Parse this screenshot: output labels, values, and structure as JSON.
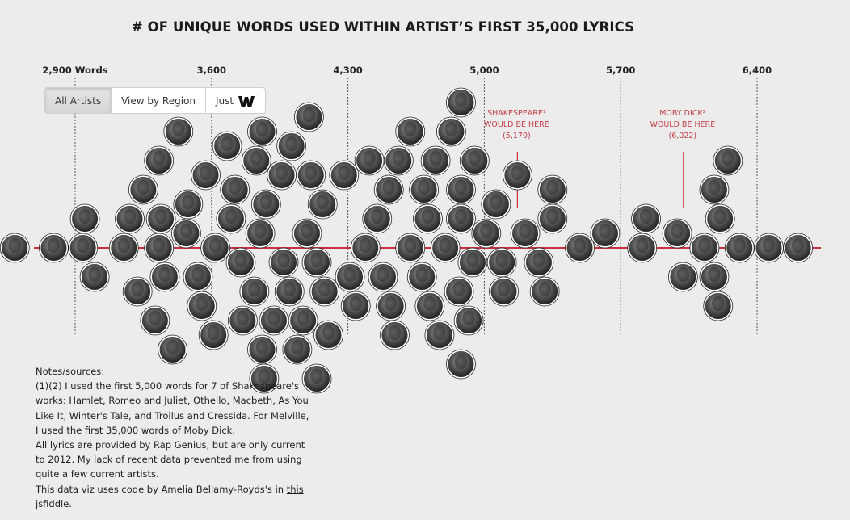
{
  "title": "# OF UNIQUE WORDS USED WITHIN ARTIST’S FIRST 35,000 LYRICS",
  "controls": {
    "all_artists": "All Artists",
    "view_by_region": "View by Region",
    "just": "Just",
    "wu_tang_icon": "wu-tang-logo-icon"
  },
  "chart_data": {
    "type": "scatter",
    "title": "# OF UNIQUE WORDS USED WITHIN ARTIST’S FIRST 35,000 LYRICS",
    "x_axis": {
      "range": [
        2600,
        6700
      ],
      "ticks": [
        2900,
        3600,
        4300,
        5000,
        5700,
        6400
      ],
      "tick_labels": [
        "2,900 Words",
        "3,600",
        "4,300",
        "5,000",
        "5,700",
        "6,400"
      ]
    },
    "grid": true,
    "annotations": [
      {
        "lines": [
          "SHAKESPEARE¹",
          "WOULD BE HERE",
          "(5,170)"
        ],
        "value": 5170
      },
      {
        "lines": [
          "MOBY DICK²",
          "WOULD BE HERE",
          "(6,022)"
        ],
        "value": 6022
      }
    ],
    "point_values": [
      2590,
      2790,
      3150,
      3330,
      3340,
      3360,
      3470,
      3480,
      3620,
      3700,
      3750,
      3820,
      3850,
      3880,
      3970,
      4090,
      4140,
      4170,
      4390,
      4450,
      4480,
      4510,
      4620,
      4710,
      4800,
      4880,
      4940,
      5010,
      5090,
      5210,
      5280,
      5350,
      5490,
      5620,
      6130,
      6210,
      6310,
      6460,
      6610,
      2940,
      2950,
      3000,
      3180,
      3220,
      3250,
      3310,
      3330,
      3400,
      3430,
      3530,
      3550,
      3570,
      3610,
      3680,
      3720,
      3760,
      3830,
      3860,
      3860,
      3870,
      3920,
      3960,
      4000,
      4010,
      4040,
      4070,
      4100,
      4110,
      4140,
      4180,
      4200,
      4280,
      4310,
      4340,
      4410,
      4520,
      4540,
      4560,
      4620,
      4680,
      4690,
      4720,
      4750,
      4770,
      4830,
      4870,
      4880,
      4880,
      4880,
      4920,
      4950,
      5060,
      5100,
      5170,
      5310,
      5350,
      5810,
      5830,
      5990,
      6020,
      6180,
      6180,
      6200,
      6250
    ]
  },
  "notes": {
    "heading": "Notes/sources:",
    "p1": "(1)(2) I used the first 5,000 words for 7 of Shakespeare's works: Hamlet, Romeo and Juliet, Othello, Macbeth, As You Like It, Winter's Tale, and Troilus and Cressida. For Melville, I used the first 35,000 words of Moby Dick.",
    "p2": "All lyrics are provided by Rap Genius, but are only current to 2012. My lack of recent data prevented me from using quite a few current artists.",
    "p3_prefix": "This data viz uses code by Amelia Bellamy-Royds's in ",
    "p3_link": "this",
    "p3_suffix": " jsfiddle."
  }
}
